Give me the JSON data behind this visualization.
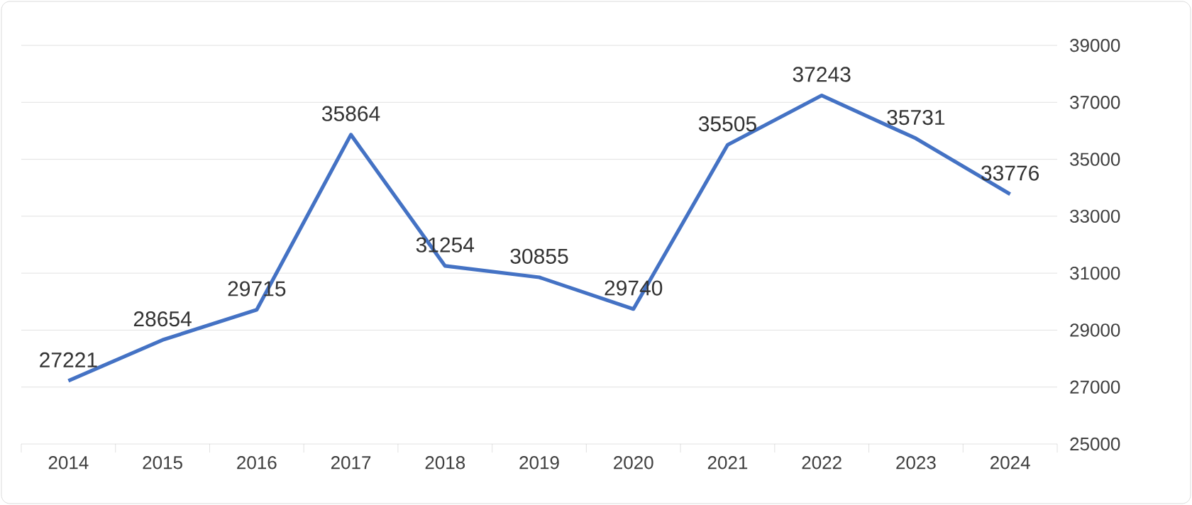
{
  "chart_data": {
    "type": "line",
    "categories": [
      "2014",
      "2015",
      "2016",
      "2017",
      "2018",
      "2019",
      "2020",
      "2021",
      "2022",
      "2023",
      "2024"
    ],
    "values": [
      27221,
      28654,
      29715,
      35864,
      31254,
      30855,
      29740,
      35505,
      37243,
      35731,
      33776
    ],
    "color": "#4472c4",
    "ylim": [
      25000,
      39000
    ],
    "yticks": [
      25000,
      27000,
      29000,
      31000,
      33000,
      35000,
      37000,
      39000
    ],
    "grid": "y",
    "data_labels": true,
    "marker": "none",
    "line_style": "solid"
  }
}
